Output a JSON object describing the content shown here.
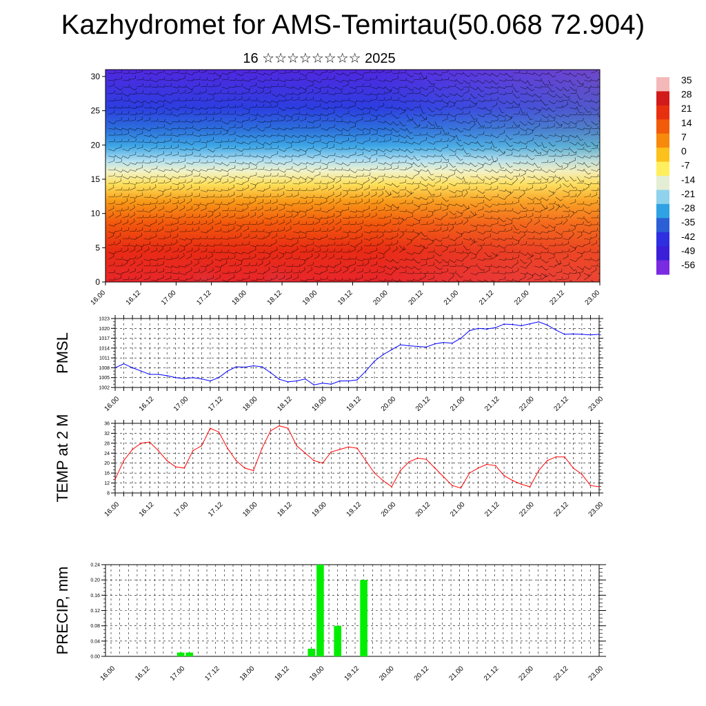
{
  "header": {
    "title": "Kazhydromet for AMS-Temirtau(50.068 72.904)",
    "subtitle": "16 ☆☆☆☆☆☆☆☆ 2025"
  },
  "colors": {
    "pmsl_line": "#0000ff",
    "temp_line": "#ff0000",
    "precip_bar": "#00ee00",
    "grid": "#000000"
  },
  "chart_data": [
    {
      "type": "heatmap",
      "name": "vertical-cross-section",
      "x_tick_labels": [
        "16.00",
        "16.12",
        "17.00",
        "17.12",
        "18.00",
        "18.12",
        "19.00",
        "19.12",
        "20.00",
        "20.12",
        "21.00",
        "21.12",
        "22.00",
        "22.12",
        "23.00"
      ],
      "y_tick_labels": [
        "0",
        "5",
        "10",
        "15",
        "20",
        "25",
        "30"
      ],
      "ylim": [
        0,
        31
      ],
      "colorbar": {
        "labels": [
          "35",
          "28",
          "21",
          "14",
          "7",
          "0",
          "-7",
          "-14",
          "-21",
          "-28",
          "-35",
          "-42",
          "-49",
          "-56"
        ],
        "colors": [
          "#f4b8b8",
          "#d21a1a",
          "#e83010",
          "#f25b0a",
          "#f78a0c",
          "#fcc11c",
          "#ffef5e",
          "#e4eed4",
          "#8fd2ec",
          "#2fa2e4",
          "#2b5fd6",
          "#2d2fe0",
          "#3b1fd8",
          "#7a2ae0"
        ]
      }
    },
    {
      "type": "line",
      "name": "pmsl",
      "ylabel": "PMSL",
      "ylim": [
        1002,
        1023
      ],
      "y_tick_labels": [
        "1002",
        "1005",
        "1008",
        "1011",
        "1014",
        "1017",
        "1020",
        "1023"
      ],
      "x_tick_labels": [
        "16.00",
        "16.12",
        "17.00",
        "17.12",
        "18.00",
        "18.12",
        "19.00",
        "19.12",
        "20.00",
        "20.12",
        "21.00",
        "21.12",
        "22.00",
        "22.12",
        "23.00"
      ],
      "x": [
        0,
        3,
        6,
        9,
        12,
        15,
        18,
        21,
        24,
        27,
        30,
        33,
        36,
        39,
        42,
        45,
        48,
        51,
        54,
        57,
        60,
        63,
        66,
        69,
        72,
        75,
        78,
        81,
        84,
        87,
        90,
        93,
        96,
        99,
        102,
        105,
        108,
        111,
        114,
        117,
        120,
        123,
        126,
        129,
        132,
        135,
        138,
        141,
        144,
        147,
        150,
        153,
        156,
        159,
        162,
        165,
        168
      ],
      "values": [
        1008,
        1009.2,
        1008,
        1007,
        1006,
        1006,
        1005.6,
        1005,
        1004.7,
        1005,
        1004.6,
        1004,
        1005,
        1007,
        1008.3,
        1008.2,
        1008.6,
        1008.3,
        1006.5,
        1004.5,
        1003.7,
        1004,
        1004.6,
        1002.8,
        1003.3,
        1003,
        1004,
        1004,
        1004.3,
        1007,
        1010,
        1012,
        1013.5,
        1015,
        1014.7,
        1014.5,
        1014.3,
        1015.3,
        1015.7,
        1015.5,
        1017,
        1019.3,
        1020,
        1019.8,
        1020.2,
        1021.3,
        1021.2,
        1020.8,
        1021.4,
        1022,
        1021,
        1019.5,
        1018.2,
        1018.3,
        1018.2,
        1018,
        1018.2
      ]
    },
    {
      "type": "line",
      "name": "temp",
      "ylabel": "TEMP at 2 M",
      "ylim": [
        8,
        36
      ],
      "y_tick_labels": [
        "8",
        "12",
        "16",
        "20",
        "24",
        "28",
        "32",
        "36"
      ],
      "x_tick_labels": [
        "16.00",
        "16.12",
        "17.00",
        "17.12",
        "18.00",
        "18.12",
        "19.00",
        "19.12",
        "20.00",
        "20.12",
        "21.00",
        "21.12",
        "22.00",
        "22.12",
        "23.00"
      ],
      "x": [
        0,
        3,
        6,
        9,
        12,
        15,
        18,
        21,
        24,
        27,
        30,
        33,
        36,
        39,
        42,
        45,
        48,
        51,
        54,
        57,
        60,
        63,
        66,
        69,
        72,
        75,
        78,
        81,
        84,
        87,
        90,
        93,
        96,
        99,
        102,
        105,
        108,
        111,
        114,
        117,
        120,
        123,
        126,
        129,
        132,
        135,
        138,
        141,
        144,
        147,
        150,
        153,
        156,
        159,
        162,
        165,
        168
      ],
      "values": [
        13.5,
        21,
        25.5,
        28,
        28.5,
        25,
        21,
        18.5,
        18,
        25,
        27,
        34,
        32.5,
        26,
        21,
        18,
        17,
        26,
        33,
        35,
        34,
        27,
        24,
        21,
        20,
        24.5,
        25.5,
        26.5,
        26,
        21,
        16,
        13,
        10.5,
        17,
        20.5,
        22,
        21.5,
        18,
        14.5,
        11,
        10,
        16,
        18,
        19.5,
        19,
        15,
        13,
        11.5,
        10.5,
        17,
        21,
        22.5,
        22.5,
        18,
        15.5,
        11,
        10.5
      ]
    },
    {
      "type": "bar",
      "name": "precip",
      "ylabel": "PRECIP, mm",
      "ylim": [
        0,
        0.24
      ],
      "y_tick_labels": [
        "0.00",
        "0.04",
        "0.08",
        "0.12",
        "0.16",
        "0.20",
        "0.24"
      ],
      "x_tick_labels": [
        "16.00",
        "16.12",
        "17.00",
        "17.12",
        "18.00",
        "18.12",
        "19.00",
        "19.12",
        "20.00",
        "20.12",
        "21.00",
        "21.12",
        "22.00",
        "22.12",
        "23.00"
      ],
      "bars": [
        {
          "x": 24,
          "value": 0.01
        },
        {
          "x": 27,
          "value": 0.01
        },
        {
          "x": 69,
          "value": 0.02
        },
        {
          "x": 72,
          "value": 0.24
        },
        {
          "x": 78,
          "value": 0.08
        },
        {
          "x": 87,
          "value": 0.2
        }
      ]
    }
  ]
}
